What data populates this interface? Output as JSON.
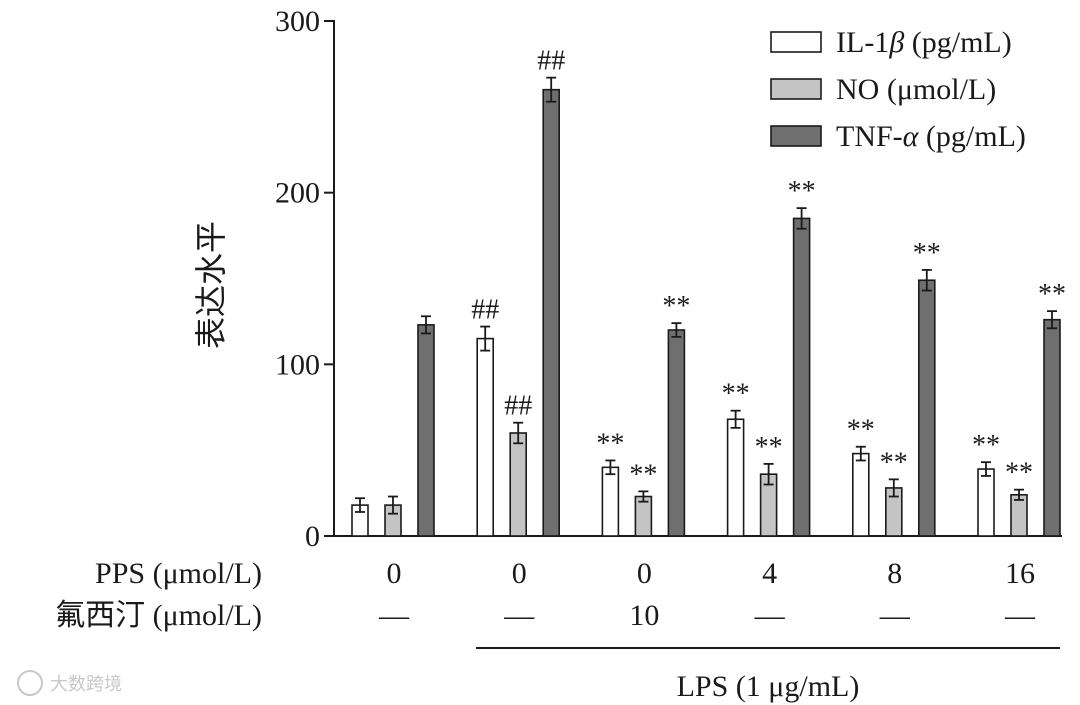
{
  "chart_data": {
    "type": "bar",
    "ylabel": "表达水平",
    "ylim": [
      0,
      300
    ],
    "yticks": [
      0,
      100,
      200,
      300
    ],
    "row_labels": {
      "pps": "PPS (μmol/L)",
      "fluoxetine": "氟西汀 (μmol/L)"
    },
    "groups": [
      {
        "pps": "0",
        "fluoxetine": "—"
      },
      {
        "pps": "0",
        "fluoxetine": "—"
      },
      {
        "pps": "0",
        "fluoxetine": "10"
      },
      {
        "pps": "4",
        "fluoxetine": "—"
      },
      {
        "pps": "8",
        "fluoxetine": "—"
      },
      {
        "pps": "16",
        "fluoxetine": "—"
      }
    ],
    "lps_label": "LPS (1 μg/mL)",
    "lps_groups": [
      1,
      5
    ],
    "series": [
      {
        "name": "IL-1β (pg/mL)",
        "legend_prefix": "IL-1",
        "legend_greek": "β",
        "legend_suffix": " (pg/mL)",
        "color": "#ffffff",
        "values": [
          18,
          115,
          40,
          68,
          48,
          39
        ],
        "errors": [
          4,
          7,
          4,
          5,
          4,
          4
        ],
        "annotations": [
          "",
          "##",
          "**",
          "**",
          "**",
          "**"
        ]
      },
      {
        "name": "NO (μmol/L)",
        "legend_prefix": "NO (μmol/L)",
        "legend_greek": "",
        "legend_suffix": "",
        "color": "#c4c4c4",
        "values": [
          18,
          60,
          23,
          36,
          28,
          24
        ],
        "errors": [
          5,
          6,
          3,
          6,
          5,
          3
        ],
        "annotations": [
          "",
          "##",
          "**",
          "**",
          "**",
          "**"
        ]
      },
      {
        "name": "TNF-α (pg/mL)",
        "legend_prefix": "TNF-",
        "legend_greek": "α",
        "legend_suffix": " (pg/mL)",
        "color": "#6f6f6f",
        "values": [
          123,
          260,
          120,
          185,
          149,
          126
        ],
        "errors": [
          5,
          7,
          4,
          6,
          6,
          5
        ],
        "annotations": [
          "",
          "##",
          "**",
          "**",
          "**",
          "**"
        ]
      }
    ]
  },
  "watermark": "大数跨境"
}
